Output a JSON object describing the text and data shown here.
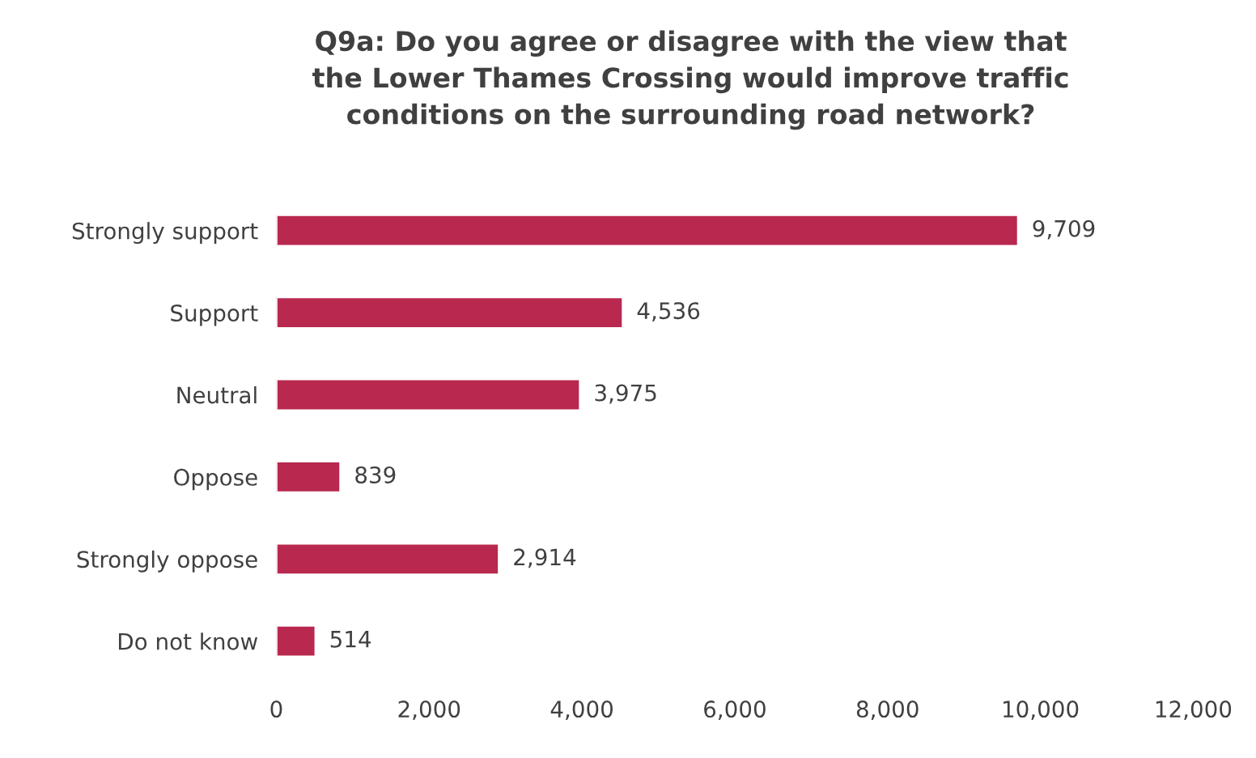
{
  "chart_data": {
    "type": "bar",
    "orientation": "horizontal",
    "title": "Q9a: Do you agree or disagree with the view that\nthe Lower Thames Crossing would improve traffic\nconditions on the surrounding road network?",
    "categories": [
      "Strongly support",
      "Support",
      "Neutral",
      "Oppose",
      "Strongly oppose",
      "Do not know"
    ],
    "values": [
      9709,
      4536,
      3975,
      839,
      2914,
      514
    ],
    "color": "#b8284f",
    "xlim": [
      0,
      12000
    ],
    "xticks": [
      0,
      {
        "value": 2000,
        "label": "2,000"
      },
      {
        "value": 4000,
        "label": "4,000"
      },
      {
        "value": 6000,
        "label": "6,000"
      },
      {
        "value": 8000,
        "label": "8,000"
      },
      {
        "value": 10000,
        "label": "10,000"
      },
      {
        "value": 12000,
        "label": "12,000"
      }
    ],
    "value_labels": [
      "9,709",
      "4,536",
      "3,975",
      "839",
      "2,914",
      "514"
    ],
    "grid": false,
    "legend": false
  }
}
